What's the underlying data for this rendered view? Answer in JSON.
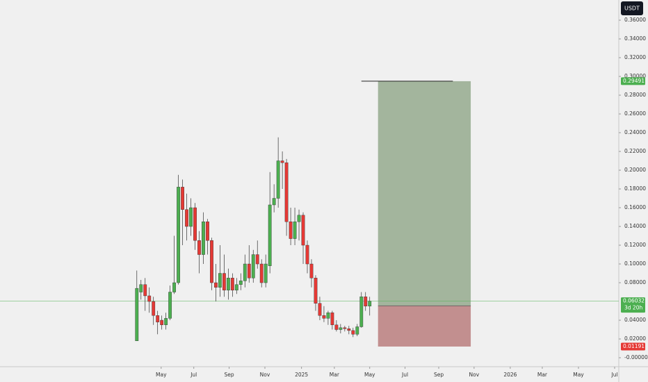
{
  "chart_data": {
    "type": "candlestick",
    "currency": "USDT",
    "x": [
      0,
      1,
      2,
      3,
      4,
      5,
      6,
      7,
      8,
      9,
      10,
      11,
      12,
      13,
      14,
      15,
      16,
      17,
      18,
      19,
      20,
      21,
      22,
      23,
      24,
      25,
      26,
      27,
      28,
      29,
      30,
      31,
      32,
      33,
      34,
      35,
      36,
      37,
      38,
      39,
      40,
      41,
      42,
      43,
      44,
      45,
      46,
      47,
      48,
      49,
      50,
      51,
      52,
      53,
      54,
      55,
      56
    ],
    "open": [
      0.018,
      0.07,
      0.078,
      0.066,
      0.06,
      0.045,
      0.04,
      0.035,
      0.042,
      0.07,
      0.08,
      0.182,
      0.158,
      0.14,
      0.16,
      0.125,
      0.11,
      0.145,
      0.125,
      0.08,
      0.075,
      0.09,
      0.072,
      0.085,
      0.072,
      0.078,
      0.082,
      0.1,
      0.085,
      0.11,
      0.1,
      0.08,
      0.098,
      0.163,
      0.17,
      0.21,
      0.208,
      0.145,
      0.127,
      0.145,
      0.152,
      0.12,
      0.1,
      0.085,
      0.058,
      0.045,
      0.042,
      0.048,
      0.035,
      0.03,
      0.032,
      0.031,
      0.029,
      0.025,
      0.033,
      0.065,
      0.055
    ],
    "high": [
      0.093,
      0.083,
      0.085,
      0.075,
      0.065,
      0.05,
      0.045,
      0.048,
      0.077,
      0.13,
      0.195,
      0.19,
      0.175,
      0.17,
      0.165,
      0.135,
      0.155,
      0.148,
      0.128,
      0.1,
      0.12,
      0.11,
      0.095,
      0.09,
      0.085,
      0.09,
      0.11,
      0.12,
      0.115,
      0.125,
      0.105,
      0.11,
      0.198,
      0.185,
      0.235,
      0.22,
      0.212,
      0.16,
      0.16,
      0.158,
      0.155,
      0.125,
      0.105,
      0.088,
      0.065,
      0.055,
      0.05,
      0.05,
      0.04,
      0.036,
      0.034,
      0.034,
      0.032,
      0.036,
      0.07,
      0.07,
      0.065
    ],
    "low": [
      0.018,
      0.062,
      0.05,
      0.048,
      0.035,
      0.025,
      0.03,
      0.03,
      0.04,
      0.068,
      0.078,
      0.12,
      0.125,
      0.13,
      0.115,
      0.09,
      0.1,
      0.11,
      0.072,
      0.06,
      0.065,
      0.065,
      0.062,
      0.065,
      0.068,
      0.072,
      0.075,
      0.08,
      0.08,
      0.095,
      0.075,
      0.075,
      0.09,
      0.155,
      0.16,
      0.18,
      0.13,
      0.12,
      0.12,
      0.125,
      0.1,
      0.09,
      0.075,
      0.05,
      0.04,
      0.038,
      0.035,
      0.03,
      0.028,
      0.026,
      0.028,
      0.025,
      0.022,
      0.023,
      0.032,
      0.05,
      0.045
    ],
    "close": [
      0.074,
      0.078,
      0.066,
      0.06,
      0.045,
      0.038,
      0.035,
      0.042,
      0.07,
      0.08,
      0.182,
      0.158,
      0.14,
      0.16,
      0.125,
      0.11,
      0.145,
      0.125,
      0.08,
      0.075,
      0.09,
      0.072,
      0.085,
      0.072,
      0.078,
      0.082,
      0.1,
      0.085,
      0.11,
      0.1,
      0.08,
      0.1,
      0.163,
      0.17,
      0.21,
      0.208,
      0.145,
      0.127,
      0.145,
      0.152,
      0.12,
      0.1,
      0.085,
      0.058,
      0.045,
      0.042,
      0.048,
      0.035,
      0.03,
      0.032,
      0.031,
      0.029,
      0.025,
      0.033,
      0.065,
      0.055,
      0.06032
    ],
    "up_color": "#4caf50",
    "down_color": "#e53935",
    "xlim": [
      -32.9,
      115.9
    ],
    "xticks": [
      {
        "value": 5.85,
        "label": "May"
      },
      {
        "value": 13.7,
        "label": "Jul"
      },
      {
        "value": 22.2,
        "label": "Sep"
      },
      {
        "value": 30.8,
        "label": "Nov"
      },
      {
        "value": 39.6,
        "label": "2025"
      },
      {
        "value": 47.5,
        "label": "Mar"
      },
      {
        "value": 56.0,
        "label": "May"
      },
      {
        "value": 64.5,
        "label": "Jul"
      },
      {
        "value": 72.6,
        "label": "Sep"
      },
      {
        "value": 81.1,
        "label": "Nov"
      },
      {
        "value": 89.8,
        "label": "2026"
      },
      {
        "value": 97.5,
        "label": "Mar"
      },
      {
        "value": 106.2,
        "label": "May"
      },
      {
        "value": 114.9,
        "label": "Jul"
      }
    ],
    "ylim": [
      -0.0096,
      0.3815
    ],
    "yticks": [
      {
        "value": 0,
        "label": "-0.00000"
      },
      {
        "value": 0.02,
        "label": "0.02000"
      },
      {
        "value": 0.04,
        "label": "0.04000"
      },
      {
        "value": 0.08,
        "label": "0.08000"
      },
      {
        "value": 0.1,
        "label": "0.10000"
      },
      {
        "value": 0.12,
        "label": "0.12000"
      },
      {
        "value": 0.14,
        "label": "0.14000"
      },
      {
        "value": 0.16,
        "label": "0.16000"
      },
      {
        "value": 0.18,
        "label": "0.18000"
      },
      {
        "value": 0.2,
        "label": "0.20000"
      },
      {
        "value": 0.22,
        "label": "0.22000"
      },
      {
        "value": 0.24,
        "label": "0.24000"
      },
      {
        "value": 0.26,
        "label": "0.26000"
      },
      {
        "value": 0.28,
        "label": "0.28000"
      },
      {
        "value": 0.3,
        "label": "0.30000"
      },
      {
        "value": 0.32,
        "label": "0.32000"
      },
      {
        "value": 0.34,
        "label": "0.34000"
      },
      {
        "value": 0.36,
        "label": "0.36000"
      }
    ],
    "last_price": 0.06032,
    "countdown": "3d 20h",
    "last_price_color": "#4caf50",
    "position": {
      "x": [
        58.0,
        80.3
      ],
      "target_line_x": [
        54.0,
        76.0
      ],
      "target": 0.29491,
      "entry": 0.05542,
      "stop": 0.01191,
      "profit_color": "#a3b59d",
      "loss_color": "#c28f8f",
      "target_color": "#4caf50",
      "entry_color": "#333333",
      "stop_color": "#e53935"
    }
  }
}
